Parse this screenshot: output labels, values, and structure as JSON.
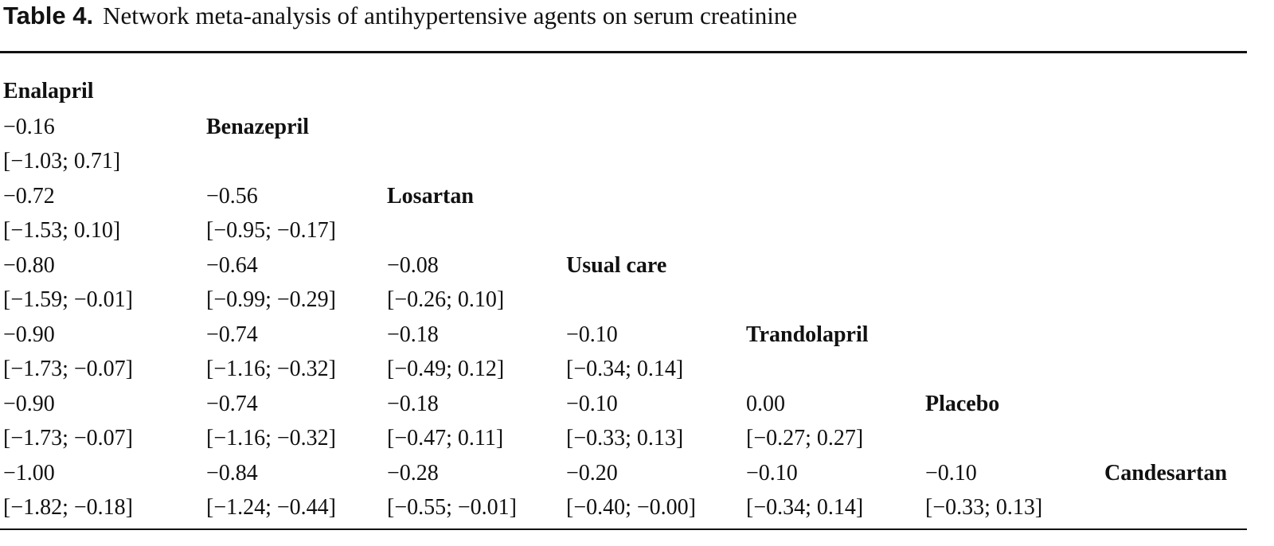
{
  "title": {
    "label": "Table 4.",
    "text": "Network meta-analysis of antihypertensive agents on serum creatinine"
  },
  "table": {
    "rows": [
      {
        "drug": "Enalapril",
        "cells": []
      },
      {
        "drug": "Benazepril",
        "cells": [
          {
            "estimate": "−0.16",
            "ci": "[−1.03; 0.71]"
          }
        ]
      },
      {
        "drug": "Losartan",
        "cells": [
          {
            "estimate": "−0.72",
            "ci": "[−1.53; 0.10]"
          },
          {
            "estimate": "−0.56",
            "ci": "[−0.95; −0.17]"
          }
        ]
      },
      {
        "drug": "Usual care",
        "cells": [
          {
            "estimate": "−0.80",
            "ci": "[−1.59; −0.01]"
          },
          {
            "estimate": "−0.64",
            "ci": "[−0.99; −0.29]"
          },
          {
            "estimate": "−0.08",
            "ci": "[−0.26; 0.10]"
          }
        ]
      },
      {
        "drug": "Trandolapril",
        "cells": [
          {
            "estimate": "−0.90",
            "ci": "[−1.73; −0.07]"
          },
          {
            "estimate": "−0.74",
            "ci": "[−1.16; −0.32]"
          },
          {
            "estimate": "−0.18",
            "ci": "[−0.49; 0.12]"
          },
          {
            "estimate": "−0.10",
            "ci": "[−0.34; 0.14]"
          }
        ]
      },
      {
        "drug": "Placebo",
        "cells": [
          {
            "estimate": "−0.90",
            "ci": "[−1.73; −0.07]"
          },
          {
            "estimate": "−0.74",
            "ci": "[−1.16; −0.32]"
          },
          {
            "estimate": "−0.18",
            "ci": "[−0.47; 0.11]"
          },
          {
            "estimate": "−0.10",
            "ci": "[−0.33; 0.13]"
          },
          {
            "estimate": "0.00",
            "ci": "[−0.27; 0.27]"
          }
        ]
      },
      {
        "drug": "Candesartan",
        "cells": [
          {
            "estimate": "−1.00",
            "ci": "[−1.82; −0.18]"
          },
          {
            "estimate": "−0.84",
            "ci": "[−1.24; −0.44]"
          },
          {
            "estimate": "−0.28",
            "ci": "[−0.55; −0.01]"
          },
          {
            "estimate": "−0.20",
            "ci": "[−0.40; −0.00]"
          },
          {
            "estimate": "−0.10",
            "ci": "[−0.34; 0.14]"
          },
          {
            "estimate": "−0.10",
            "ci": "[−0.33; 0.13]"
          }
        ]
      }
    ]
  }
}
